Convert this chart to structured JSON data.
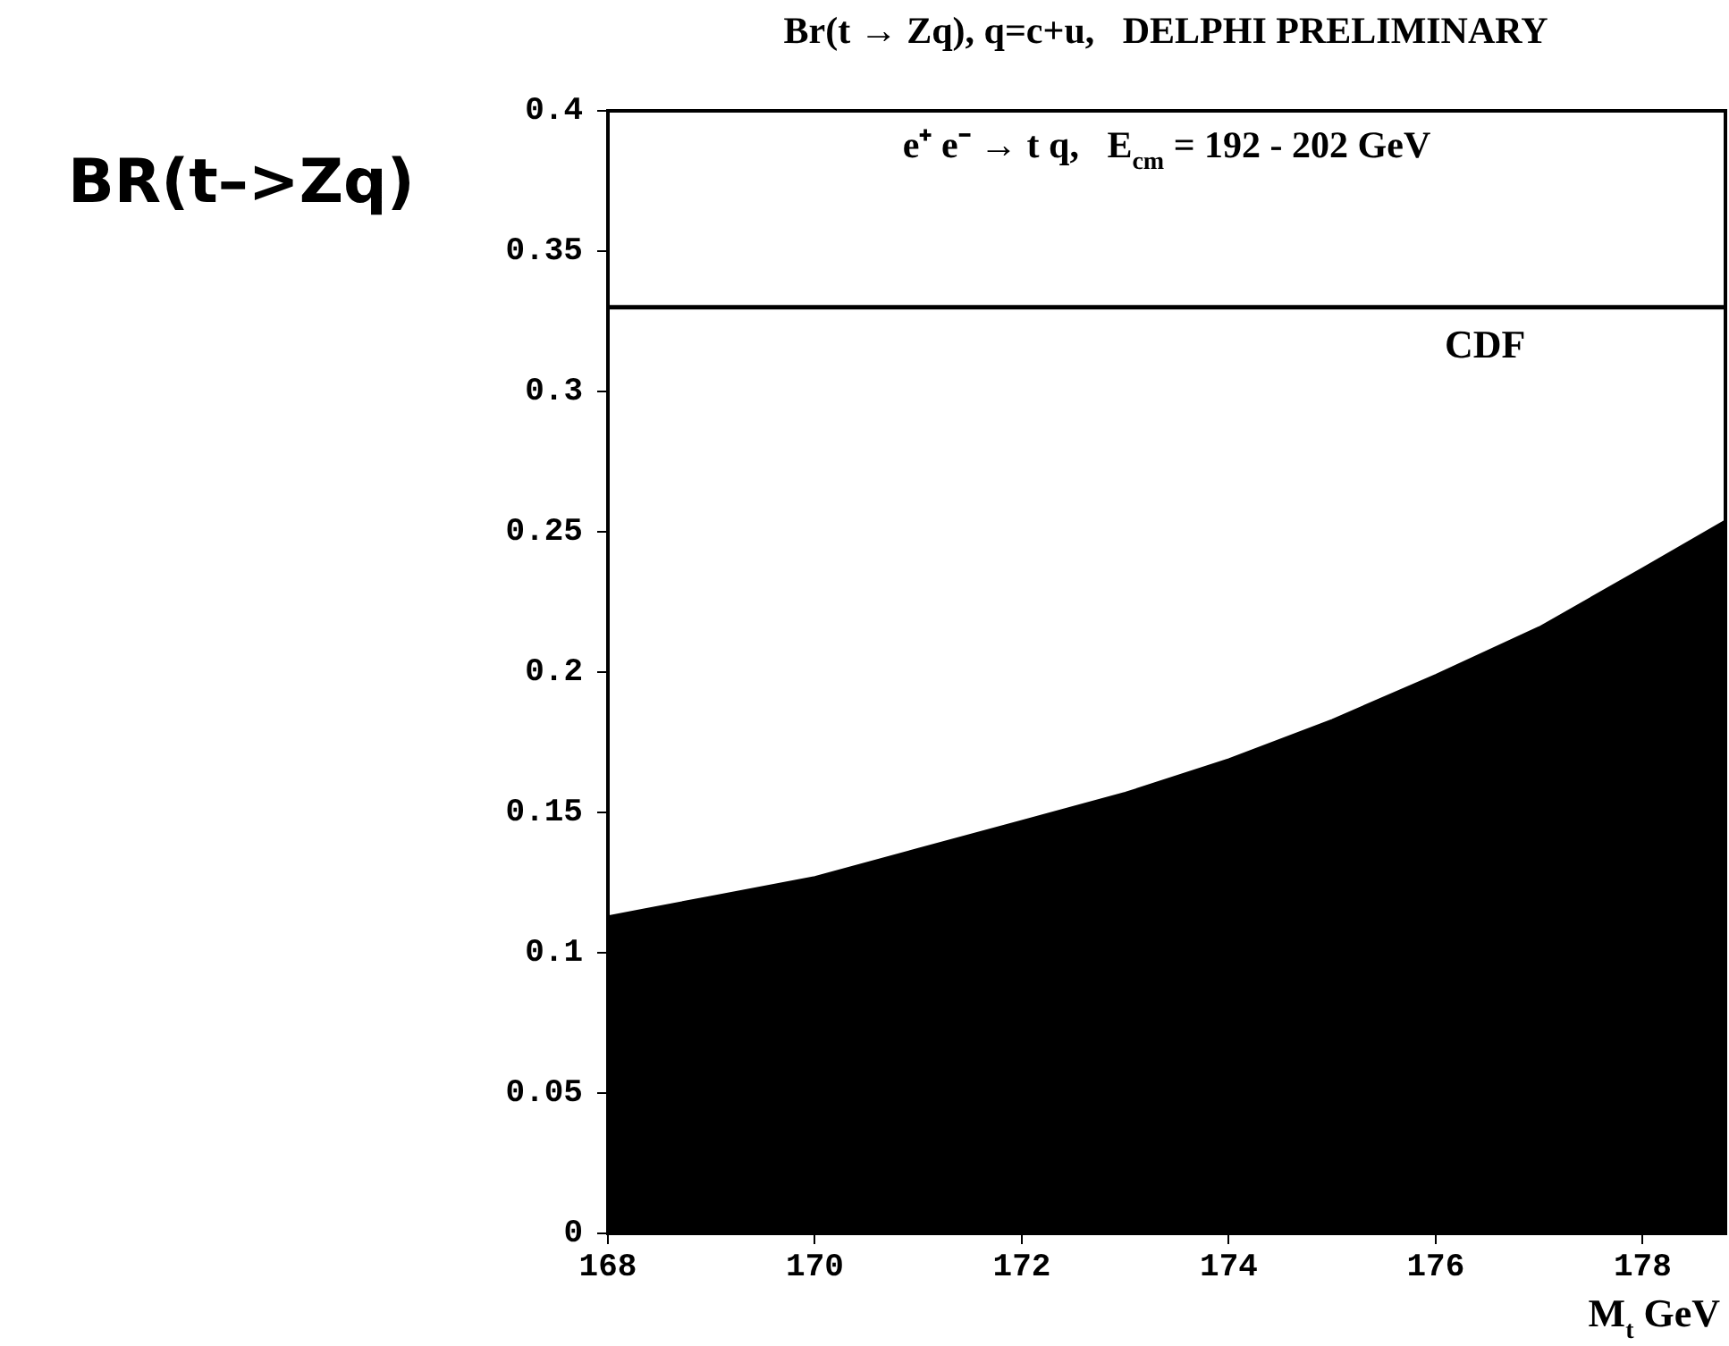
{
  "chart_data": {
    "type": "area",
    "title": "Br(t → Zq), q=c+u,   DELPHI PRELIMINARY",
    "ylabel": "BR(t–>Zq)",
    "xlabel": "M$_{t}$ GeV",
    "annotations": [
      "e⁺ e⁻ → t q,   E$_{cm}$ = 192 - 202 GeV"
    ],
    "x": [
      168,
      169,
      170,
      171,
      172,
      173,
      174,
      175,
      176,
      177,
      178,
      178.8
    ],
    "series": [
      {
        "color": "#000000",
        "values": [
          0.113,
          0.12,
          0.127,
          0.137,
          0.147,
          0.157,
          0.169,
          0.183,
          0.199,
          0.216,
          0.237,
          0.254
        ]
      }
    ],
    "xlim": [
      168,
      178.8
    ],
    "xticks": [
      168,
      170,
      172,
      174,
      176,
      178
    ],
    "ylim": [
      0,
      0.4
    ],
    "yticks": [
      0,
      0.05,
      0.1,
      0.15,
      0.2,
      0.25,
      0.3,
      0.35,
      0.4
    ],
    "ref_lines": [
      {
        "axis": "y",
        "value": 0.33,
        "label": "CDF",
        "color": "#000000"
      }
    ],
    "grid": false,
    "legend": false
  }
}
